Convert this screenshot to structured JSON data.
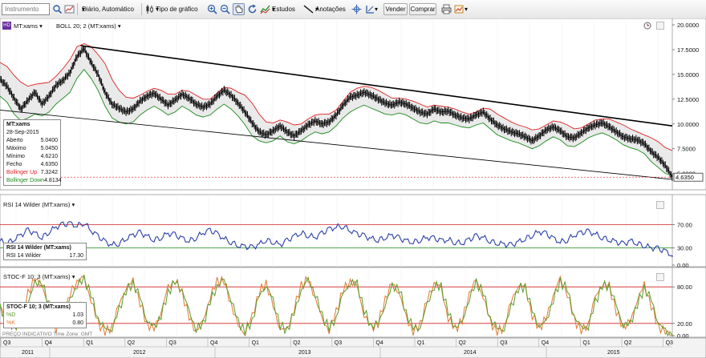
{
  "toolbar": {
    "instrument_placeholder": "Instrumento",
    "period_label": "Diário, Automático",
    "chart_type_label": "Tipo de gráfico",
    "studies_label": "Estudos",
    "annotations_label": "Anotações",
    "sell_label": "Vender",
    "buy_label": "Comprar"
  },
  "price_panel": {
    "logo": "HD",
    "symbol": "MT:xams",
    "indicator": "BOLL 20; 2 (MT:xams)",
    "last_price": "4.6350",
    "y_ticks": [
      "20.0000",
      "17.5000",
      "15.0000",
      "12.5000",
      "10.0000",
      "7.5000",
      "5.0000"
    ],
    "info": {
      "title": "MT:xams",
      "date": "28-Sep-2015",
      "rows": [
        {
          "label": "Aberto",
          "value": "5.0400"
        },
        {
          "label": "Máximo",
          "value": "5.0450"
        },
        {
          "label": "Mínimo",
          "value": "4.6210"
        },
        {
          "label": "Fecho",
          "value": "4.6350"
        },
        {
          "label": "Bollinger Up",
          "value": "7.3242"
        },
        {
          "label": "Bollinger Down",
          "value": "4.8134"
        }
      ]
    }
  },
  "rsi_panel": {
    "indicator": "RSI 14 Wilder (MT:xams)",
    "info_title": "RSI 14 Wilder (MT:xams)",
    "info_row_label": "RSI 14 Wilder",
    "info_row_value": "17.30",
    "y_ticks": [
      "70.00",
      "30.00",
      "0.00"
    ]
  },
  "stoch_panel": {
    "indicator": "STOC-F 10; 3 (MT:xams)",
    "info_title": "STOC-F 10; 3 (MT:xams)",
    "pd_label": "%D",
    "pd_value": "1.03",
    "pk_label": "%K",
    "pk_value": "0.80",
    "footer": "PREÇO INDICATIVO   Time Zone: GMT",
    "y_ticks": [
      "80.00",
      "20.00",
      "0.00"
    ]
  },
  "time_axis": {
    "quarters": [
      "Q3",
      "Q4",
      "Q1",
      "Q2",
      "Q3",
      "Q4",
      "Q1",
      "Q2",
      "Q3",
      "Q4",
      "Q1",
      "Q2",
      "Q3",
      "Q4",
      "Q1",
      "Q2",
      "Q3"
    ],
    "years": [
      "2011",
      "2012",
      "2013",
      "2014",
      "2015"
    ]
  },
  "colors": {
    "price": "#000000",
    "boll_up": "#e02020",
    "boll_down": "#1a8a1a",
    "fill": "#d8d8d8",
    "rsi": "#2b3fa8",
    "stoch_k": "#e07a30",
    "stoch_d": "#5a9a2a",
    "level_line": "#d02020"
  },
  "chart_data": {
    "type": "line",
    "x_range": [
      "2011-09-01",
      "2015-09-28"
    ],
    "price": {
      "ylim": [
        4,
        20
      ],
      "close": [
        14.5,
        13.8,
        12.6,
        11.5,
        12.4,
        13.2,
        12.0,
        12.8,
        13.9,
        14.4,
        15.2,
        16.8,
        17.6,
        16.2,
        15.0,
        13.2,
        12.0,
        11.6,
        11.2,
        11.5,
        12.3,
        12.8,
        13.1,
        12.5,
        11.9,
        12.4,
        13.0,
        12.6,
        12.0,
        11.7,
        12.0,
        12.8,
        13.4,
        12.9,
        12.1,
        11.2,
        10.1,
        9.2,
        8.9,
        9.3,
        9.8,
        9.2,
        8.8,
        9.3,
        9.9,
        10.3,
        10.0,
        10.2,
        10.9,
        11.9,
        12.7,
        12.9,
        13.2,
        12.9,
        12.5,
        12.1,
        11.9,
        12.2,
        12.0,
        11.6,
        11.2,
        11.0,
        11.5,
        11.2,
        11.3,
        10.9,
        10.6,
        10.5,
        10.9,
        11.2,
        10.5,
        9.9,
        9.5,
        9.2,
        9.0,
        8.7,
        8.3,
        8.8,
        9.4,
        9.7,
        9.3,
        8.7,
        8.6,
        9.1,
        9.6,
        9.9,
        10.1,
        9.7,
        9.2,
        8.7,
        8.5,
        8.4,
        8.0,
        7.2,
        6.6,
        5.8,
        4.63
      ],
      "boll_up": [
        16.2,
        15.8,
        14.9,
        14.2,
        13.8,
        14.0,
        14.1,
        14.2,
        14.8,
        15.6,
        16.5,
        17.8,
        18.1,
        17.8,
        17.0,
        16.1,
        14.5,
        13.4,
        12.7,
        12.6,
        12.9,
        13.3,
        13.6,
        13.4,
        13.0,
        13.0,
        13.4,
        13.3,
        12.9,
        12.5,
        12.5,
        13.1,
        13.7,
        13.6,
        13.2,
        12.9,
        12.1,
        11.0,
        10.2,
        10.1,
        10.4,
        10.2,
        9.9,
        10.0,
        10.5,
        10.9,
        11.0,
        11.0,
        11.4,
        12.3,
        13.2,
        13.6,
        13.8,
        13.7,
        13.4,
        13.0,
        12.6,
        12.6,
        12.5,
        12.3,
        12.0,
        11.7,
        11.9,
        11.8,
        11.7,
        11.5,
        11.2,
        11.0,
        11.2,
        11.6,
        11.5,
        11.0,
        10.6,
        10.2,
        9.9,
        9.7,
        9.4,
        9.5,
        9.9,
        10.3,
        10.2,
        9.9,
        9.5,
        9.6,
        10.0,
        10.4,
        10.5,
        10.5,
        10.2,
        9.9,
        9.5,
        9.2,
        8.9,
        8.6,
        8.2,
        7.6,
        7.32
      ],
      "boll_down": [
        12.8,
        12.2,
        11.0,
        10.3,
        10.6,
        11.0,
        10.8,
        11.2,
        12.0,
        12.6,
        13.2,
        14.6,
        15.5,
        14.6,
        13.4,
        11.8,
        10.6,
        10.2,
        10.0,
        10.2,
        10.9,
        11.4,
        11.8,
        11.4,
        10.9,
        11.2,
        11.8,
        11.4,
        10.9,
        10.7,
        10.9,
        11.5,
        12.0,
        11.5,
        10.8,
        9.9,
        8.8,
        8.3,
        8.1,
        8.3,
        8.8,
        8.2,
        8.0,
        8.3,
        8.8,
        9.2,
        9.0,
        9.2,
        9.8,
        10.6,
        11.2,
        11.6,
        11.9,
        11.6,
        11.3,
        11.0,
        10.9,
        11.1,
        10.9,
        10.5,
        10.1,
        10.0,
        10.3,
        10.1,
        10.1,
        9.9,
        9.7,
        9.6,
        9.9,
        10.1,
        9.5,
        8.9,
        8.6,
        8.3,
        8.1,
        7.8,
        7.5,
        7.8,
        8.3,
        8.7,
        8.4,
        7.8,
        7.7,
        8.1,
        8.6,
        8.9,
        9.1,
        8.8,
        8.4,
        7.9,
        7.6,
        7.4,
        7.0,
        6.2,
        5.6,
        5.0,
        4.81
      ],
      "resistance_line": [
        [
          0.12,
          17.9
        ],
        [
          1.0,
          9.8
        ]
      ],
      "support_line": [
        [
          0.0,
          11.4
        ],
        [
          1.0,
          4.4
        ]
      ]
    },
    "rsi": {
      "ylim": [
        0,
        100
      ],
      "levels": [
        70,
        30
      ],
      "values": [
        42,
        38,
        45,
        52,
        60,
        55,
        48,
        58,
        66,
        70,
        72,
        68,
        74,
        60,
        50,
        40,
        35,
        38,
        46,
        52,
        56,
        50,
        44,
        48,
        55,
        52,
        46,
        42,
        48,
        56,
        60,
        54,
        46,
        40,
        34,
        32,
        30,
        36,
        44,
        40,
        35,
        42,
        50,
        56,
        52,
        48,
        55,
        62,
        66,
        68,
        60,
        54,
        50,
        46,
        44,
        48,
        52,
        46,
        42,
        40,
        44,
        48,
        46,
        42,
        44,
        40,
        38,
        44,
        50,
        48,
        42,
        38,
        36,
        34,
        40,
        46,
        52,
        58,
        54,
        46,
        40,
        44,
        52,
        56,
        58,
        54,
        48,
        44,
        40,
        36,
        42,
        38,
        34,
        30,
        28,
        24,
        17.3
      ]
    },
    "stochastic": {
      "ylim": [
        0,
        100
      ],
      "levels": [
        80,
        20
      ],
      "k": [
        50,
        20,
        8,
        30,
        70,
        92,
        85,
        40,
        12,
        25,
        68,
        90,
        94,
        60,
        20,
        6,
        15,
        50,
        80,
        88,
        55,
        18,
        10,
        40,
        78,
        92,
        70,
        30,
        8,
        22,
        65,
        88,
        90,
        52,
        15,
        5,
        30,
        72,
        86,
        48,
        12,
        8,
        45,
        82,
        92,
        64,
        25,
        10,
        38,
        75,
        90,
        80,
        35,
        12,
        20,
        60,
        85,
        72,
        28,
        8,
        18,
        58,
        88,
        76,
        30,
        10,
        25,
        70,
        90,
        66,
        22,
        6,
        15,
        55,
        84,
        78,
        34,
        12,
        28,
        68,
        92,
        70,
        26,
        8,
        20,
        62,
        86,
        80,
        40,
        14,
        22,
        60,
        82,
        50,
        15,
        5,
        0.8
      ],
      "d": [
        45,
        26,
        15,
        22,
        55,
        85,
        88,
        50,
        20,
        22,
        58,
        84,
        92,
        68,
        28,
        10,
        12,
        42,
        74,
        86,
        62,
        25,
        12,
        34,
        70,
        88,
        76,
        38,
        12,
        18,
        56,
        82,
        90,
        60,
        22,
        8,
        24,
        64,
        84,
        56,
        18,
        8,
        36,
        76,
        90,
        70,
        32,
        12,
        30,
        68,
        88,
        84,
        42,
        16,
        18,
        52,
        80,
        78,
        36,
        12,
        14,
        50,
        82,
        80,
        38,
        14,
        20,
        62,
        86,
        72,
        28,
        10,
        12,
        46,
        78,
        80,
        40,
        16,
        22,
        60,
        88,
        76,
        32,
        12,
        16,
        54,
        82,
        82,
        48,
        18,
        18,
        52,
        78,
        58,
        22,
        6,
        1.03
      ]
    }
  }
}
